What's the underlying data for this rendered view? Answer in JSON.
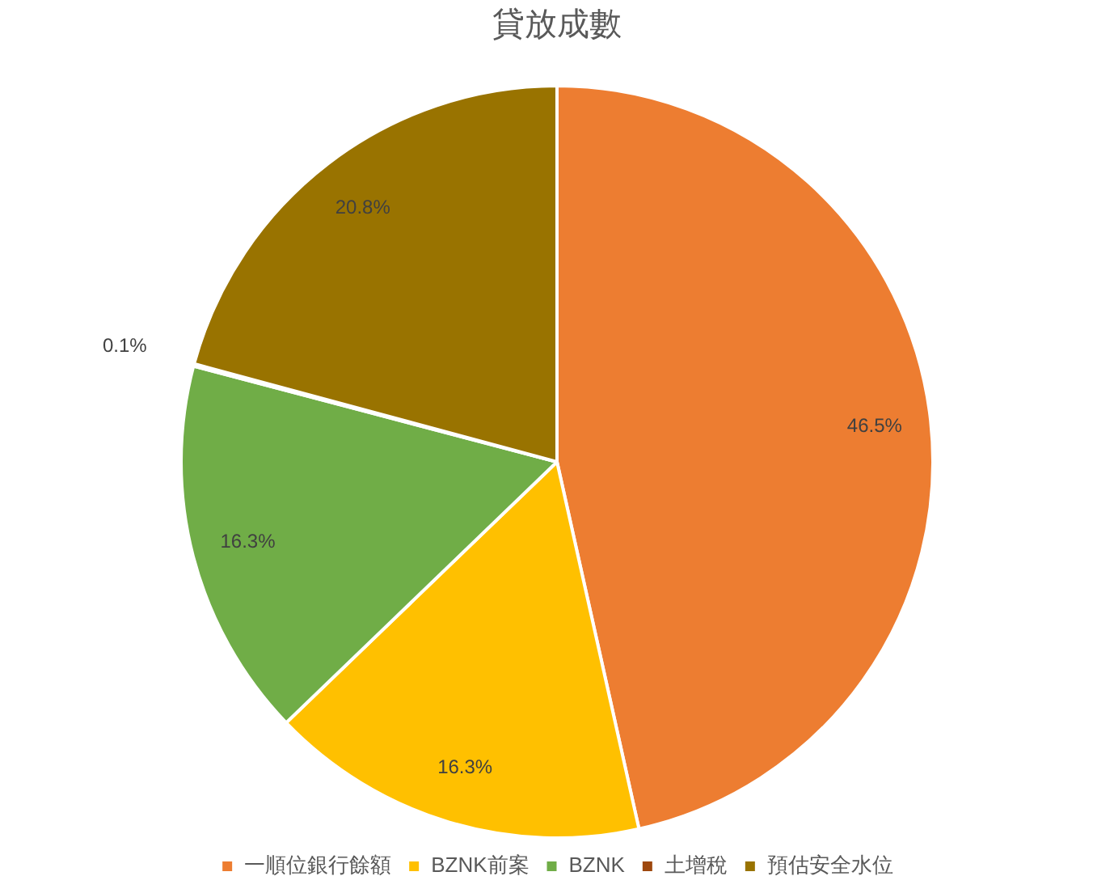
{
  "chart_data": {
    "type": "pie",
    "title": "貸放成數",
    "categories": [
      "一順位銀行餘額",
      "BZNK前案",
      "BZNK",
      "土增稅",
      "預估安全水位"
    ],
    "values": [
      46.5,
      16.3,
      16.3,
      0.1,
      20.8
    ],
    "colors": [
      "#ed7d31",
      "#ffc000",
      "#70ad47",
      "#9e480e",
      "#997300"
    ],
    "value_labels": [
      "46.5%",
      "16.3%",
      "16.3%",
      "0.1%",
      "20.8%"
    ],
    "legend": "bottom"
  }
}
